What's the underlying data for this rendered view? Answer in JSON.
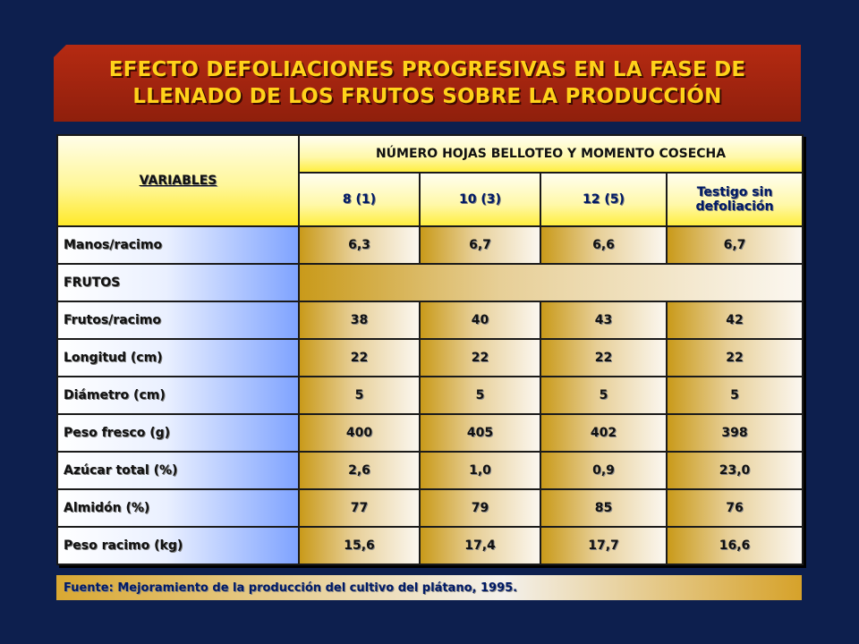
{
  "title": {
    "line1": "EFECTO DEFOLIACIONES PROGRESIVAS EN LA FASE DE",
    "line2": "LLENADO DE LOS FRUTOS SOBRE LA PRODUCCIÓN"
  },
  "table": {
    "variables_header": "VARIABLES",
    "group_header": "NÚMERO HOJAS BELLOTEO Y MOMENTO COSECHA",
    "columns": [
      "8  (1)",
      "10  (3)",
      "12  (5)",
      "Testigo sin defoliación"
    ],
    "rows": [
      {
        "label": "Manos/racimo",
        "values": [
          "6,3",
          "6,7",
          "6,6",
          "6,7"
        ]
      },
      {
        "label": "FRUTOS"
      },
      {
        "label": "Frutos/racimo",
        "values": [
          "38",
          "40",
          "43",
          "42"
        ]
      },
      {
        "label": "Longitud (cm)",
        "values": [
          "22",
          "22",
          "22",
          "22"
        ]
      },
      {
        "label": "Diámetro (cm)",
        "values": [
          "5",
          "5",
          "5",
          "5"
        ]
      },
      {
        "label": "Peso fresco (g)",
        "values": [
          "400",
          "405",
          "402",
          "398"
        ]
      },
      {
        "label": "Azúcar total (%)",
        "values": [
          "2,6",
          "1,0",
          "0,9",
          "23,0"
        ]
      },
      {
        "label": "Almidón (%)",
        "values": [
          "77",
          "79",
          "85",
          "76"
        ]
      },
      {
        "label": "Peso racimo (kg)",
        "values": [
          "15,6",
          "17,4",
          "17,7",
          "16,6"
        ]
      }
    ]
  },
  "source": "Fuente: Mejoramiento de la producción del cultivo del plátano, 1995."
}
